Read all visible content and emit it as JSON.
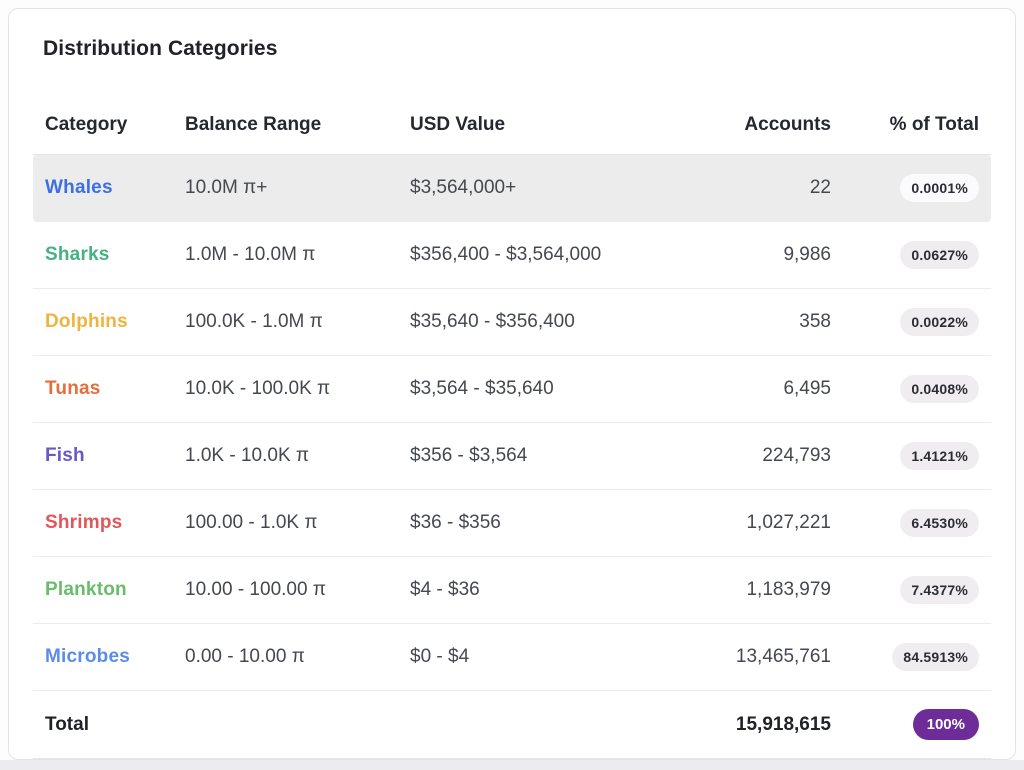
{
  "card": {
    "title": "Distribution Categories",
    "table": {
      "headers": {
        "category": "Category",
        "balance_range": "Balance Range",
        "usd_value": "USD Value",
        "accounts": "Accounts",
        "pct_of_total": "% of Total"
      },
      "rows": [
        {
          "category": "Whales",
          "color": "#3d6fe0",
          "balance_range": "10.0M π+",
          "usd_value": "$3,564,000+",
          "accounts": "22",
          "pct": "0.0001%",
          "highlighted": true
        },
        {
          "category": "Sharks",
          "color": "#46b182",
          "balance_range": "1.0M - 10.0M π",
          "usd_value": "$356,400 - $3,564,000",
          "accounts": "9,986",
          "pct": "0.0627%",
          "highlighted": false
        },
        {
          "category": "Dolphins",
          "color": "#f1b33f",
          "balance_range": "100.0K - 1.0M π",
          "usd_value": "$35,640 - $356,400",
          "accounts": "358",
          "pct": "0.0022%",
          "highlighted": false
        },
        {
          "category": "Tunas",
          "color": "#e66e3e",
          "balance_range": "10.0K - 100.0K π",
          "usd_value": "$3,564 - $35,640",
          "accounts": "6,495",
          "pct": "0.0408%",
          "highlighted": false
        },
        {
          "category": "Fish",
          "color": "#6659c9",
          "balance_range": "1.0K - 10.0K π",
          "usd_value": "$356 - $3,564",
          "accounts": "224,793",
          "pct": "1.4121%",
          "highlighted": false
        },
        {
          "category": "Shrimps",
          "color": "#e25659",
          "balance_range": "100.00 - 1.0K π",
          "usd_value": "$36 - $356",
          "accounts": "1,027,221",
          "pct": "6.4530%",
          "highlighted": false
        },
        {
          "category": "Plankton",
          "color": "#68bd6b",
          "balance_range": "10.00 - 100.00 π",
          "usd_value": "$4 - $36",
          "accounts": "1,183,979",
          "pct": "7.4377%",
          "highlighted": false
        },
        {
          "category": "Microbes",
          "color": "#5c8be9",
          "balance_range": "0.00 - 10.00 π",
          "usd_value": "$0 - $4",
          "accounts": "13,465,761",
          "pct": "84.5913%",
          "highlighted": false
        }
      ],
      "total": {
        "label": "Total",
        "accounts": "15,918,615",
        "pct": "100%",
        "pill_bg": "#6e2c99"
      }
    },
    "colors": {
      "highlight_row_bg": "#ececec",
      "pill_bg": "#efedf0",
      "total_pill_bg": "#6e2c99"
    }
  }
}
